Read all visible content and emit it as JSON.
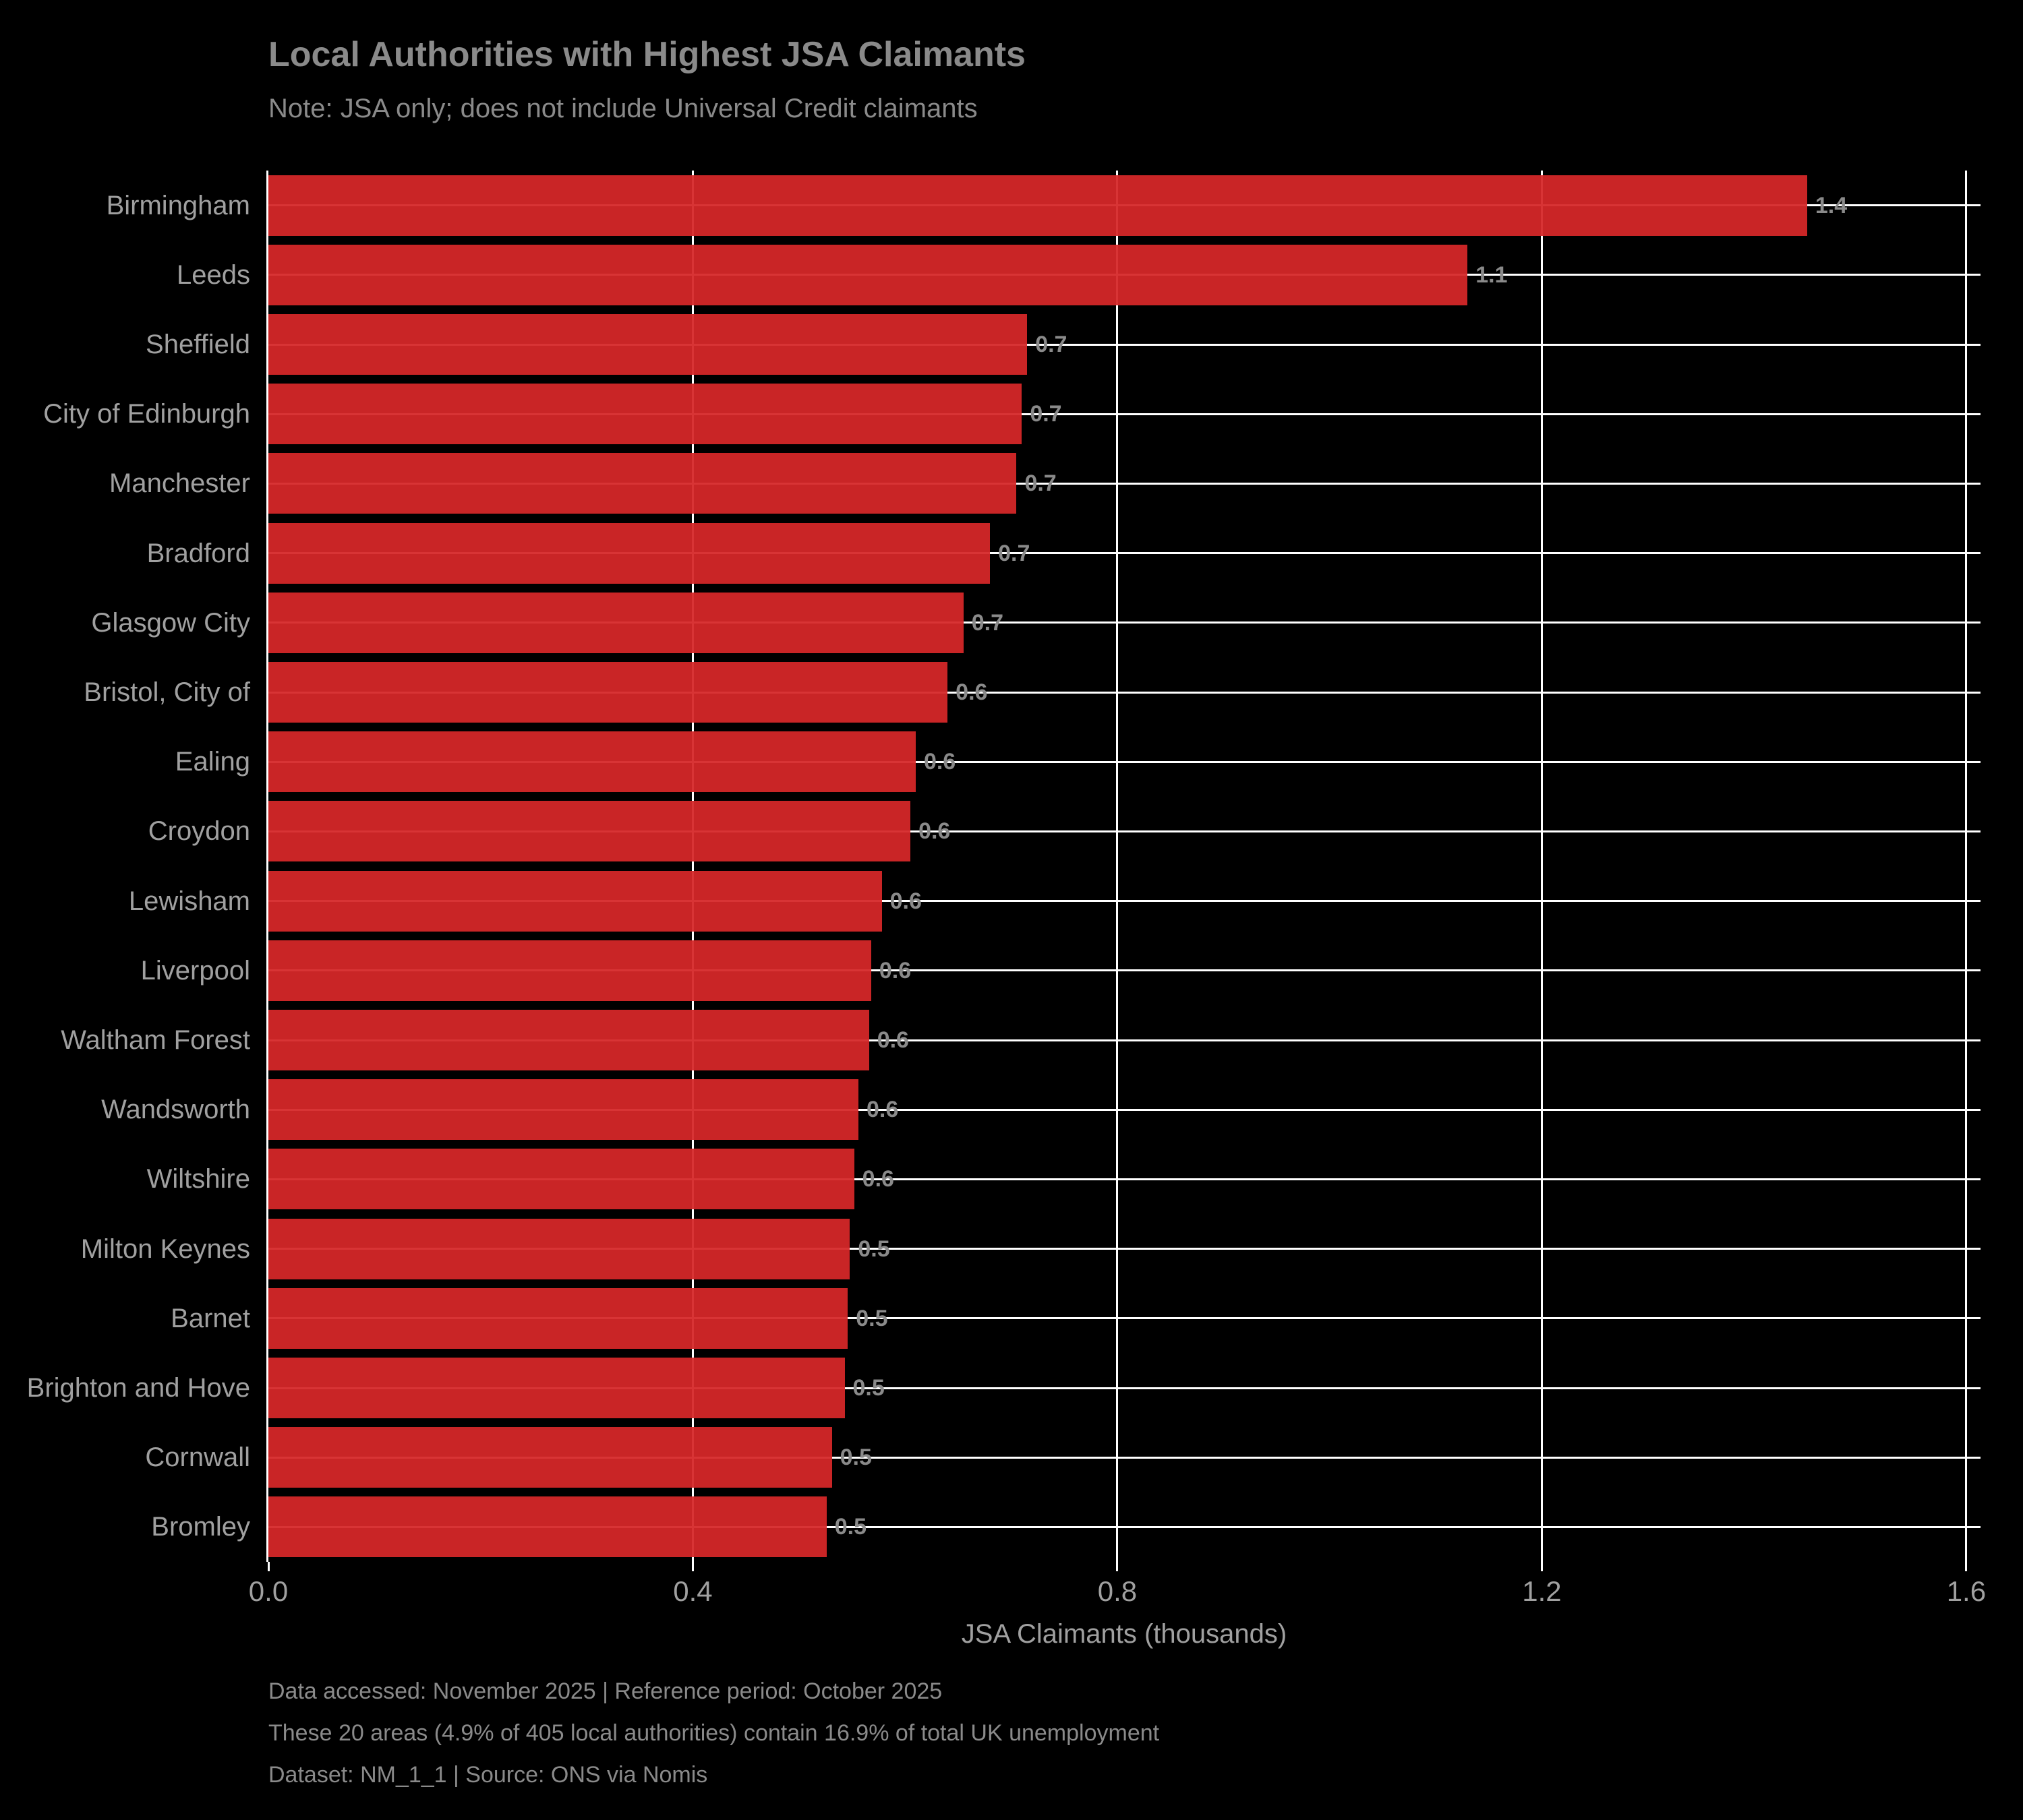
{
  "chart": {
    "title": "Local Authorities with Highest JSA Claimants",
    "subtitle": "Note: JSA only; does not include Universal Credit claimants",
    "xlabel": "JSA Claimants (thousands)",
    "footer_lines": [
      "Data accessed: November 2025 | Reference period: October 2025",
      "These 20 areas (4.9% of 405 local authorities) contain 16.9% of total UK unemployment",
      "Dataset: NM_1_1 | Source: ONS via Nomis"
    ],
    "colors": {
      "background": "#000000",
      "bar": "#d62728",
      "bar_opacity": 0.94,
      "grid": "#ffffff",
      "title_text": "#8a8a8a",
      "subtitle_text": "#8a8a8a",
      "axis_text": "#a0a0a0",
      "value_text": "#8a8a8a",
      "footer_text": "#8a8a8a"
    }
  },
  "chart_data": {
    "type": "bar",
    "orientation": "horizontal",
    "title": "Local Authorities with Highest JSA Claimants",
    "subtitle": "Note: JSA only; does not include Universal Credit claimants",
    "xlabel": "JSA Claimants (thousands)",
    "ylabel": "",
    "grid": true,
    "legend": false,
    "categories": [
      "Birmingham",
      "Leeds",
      "Sheffield",
      "City of Edinburgh",
      "Manchester",
      "Bradford",
      "Glasgow City",
      "Bristol, City of",
      "Ealing",
      "Croydon",
      "Lewisham",
      "Liverpool",
      "Waltham Forest",
      "Wandsworth",
      "Wiltshire",
      "Milton Keynes",
      "Barnet",
      "Brighton and Hove",
      "Cornwall",
      "Bromley"
    ],
    "values": [
      1.45,
      1.13,
      0.715,
      0.71,
      0.705,
      0.68,
      0.655,
      0.64,
      0.61,
      0.605,
      0.578,
      0.568,
      0.566,
      0.556,
      0.552,
      0.548,
      0.546,
      0.543,
      0.531,
      0.526
    ],
    "value_labels": [
      "1.4",
      "1.1",
      "0.7",
      "0.7",
      "0.7",
      "0.7",
      "0.7",
      "0.6",
      "0.6",
      "0.6",
      "0.6",
      "0.6",
      "0.6",
      "0.6",
      "0.6",
      "0.5",
      "0.5",
      "0.5",
      "0.5",
      "0.5"
    ],
    "xlim": [
      0,
      1.6134
    ],
    "xticks": [
      0.0,
      0.4,
      0.8,
      1.2,
      1.6
    ],
    "xtick_labels": [
      "0.0",
      "0.4",
      "0.8",
      "1.2",
      "1.6"
    ]
  }
}
